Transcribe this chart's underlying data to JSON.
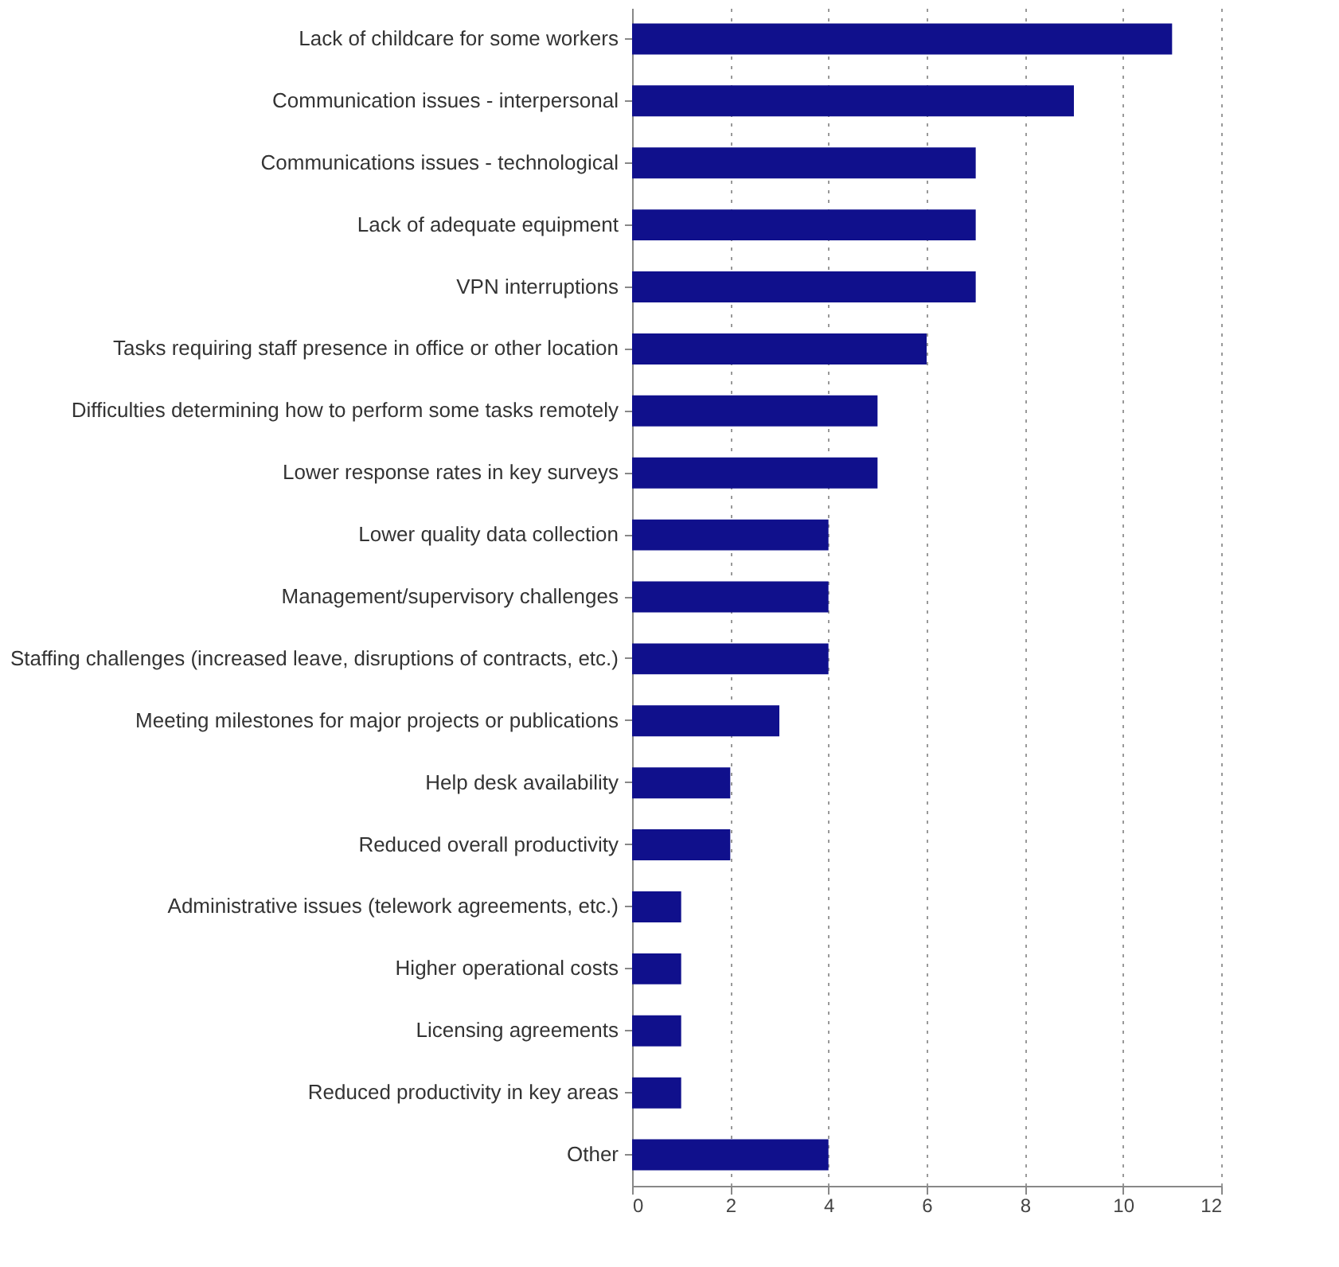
{
  "chart_data": {
    "type": "bar",
    "orientation": "horizontal",
    "categories": [
      "Lack of childcare for some workers",
      "Communication issues - interpersonal",
      "Communications issues - technological",
      "Lack of adequate equipment",
      "VPN interruptions",
      "Tasks requiring staff presence in office or other location",
      "Difficulties determining how to perform some tasks remotely",
      "Lower response rates in key surveys",
      "Lower quality data collection",
      "Management/supervisory challenges",
      "Staffing challenges (increased leave, disruptions of contracts, etc.)",
      "Meeting milestones for major projects or publications",
      "Help desk availability",
      "Reduced overall productivity",
      "Administrative issues (telework agreements, etc.)",
      "Higher operational costs",
      "Licensing agreements",
      "Reduced productivity in key areas",
      "Other"
    ],
    "values": [
      11,
      9,
      7,
      7,
      7,
      6,
      5,
      5,
      4,
      4,
      4,
      3,
      2,
      2,
      1,
      1,
      1,
      1,
      4
    ],
    "color": "#10108c",
    "xlim": [
      0,
      12
    ],
    "xticks": [
      0,
      2,
      4,
      6,
      8,
      10,
      12
    ],
    "grid": "x"
  }
}
